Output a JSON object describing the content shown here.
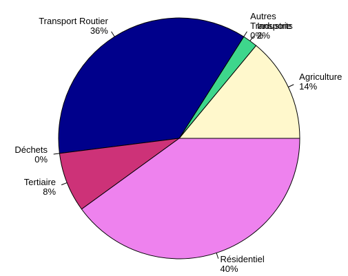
{
  "chart_data": {
    "type": "pie",
    "categories": [
      "Agriculture",
      "Industrie",
      "Autres\nTransports",
      "Transport Routier",
      "Déchets",
      "Tertiaire",
      "Résidentiel"
    ],
    "values": [
      14,
      2,
      0,
      36,
      0,
      8,
      40
    ],
    "value_labels": [
      "14%",
      "2%",
      "0%",
      "36%",
      "0%",
      "8%",
      "40%"
    ],
    "colors": [
      "#fff8cc",
      "#3ed68c",
      "#8fd3e0",
      "#00008b",
      "#a0a0a0",
      "#cd3278",
      "#ee82ee"
    ]
  }
}
